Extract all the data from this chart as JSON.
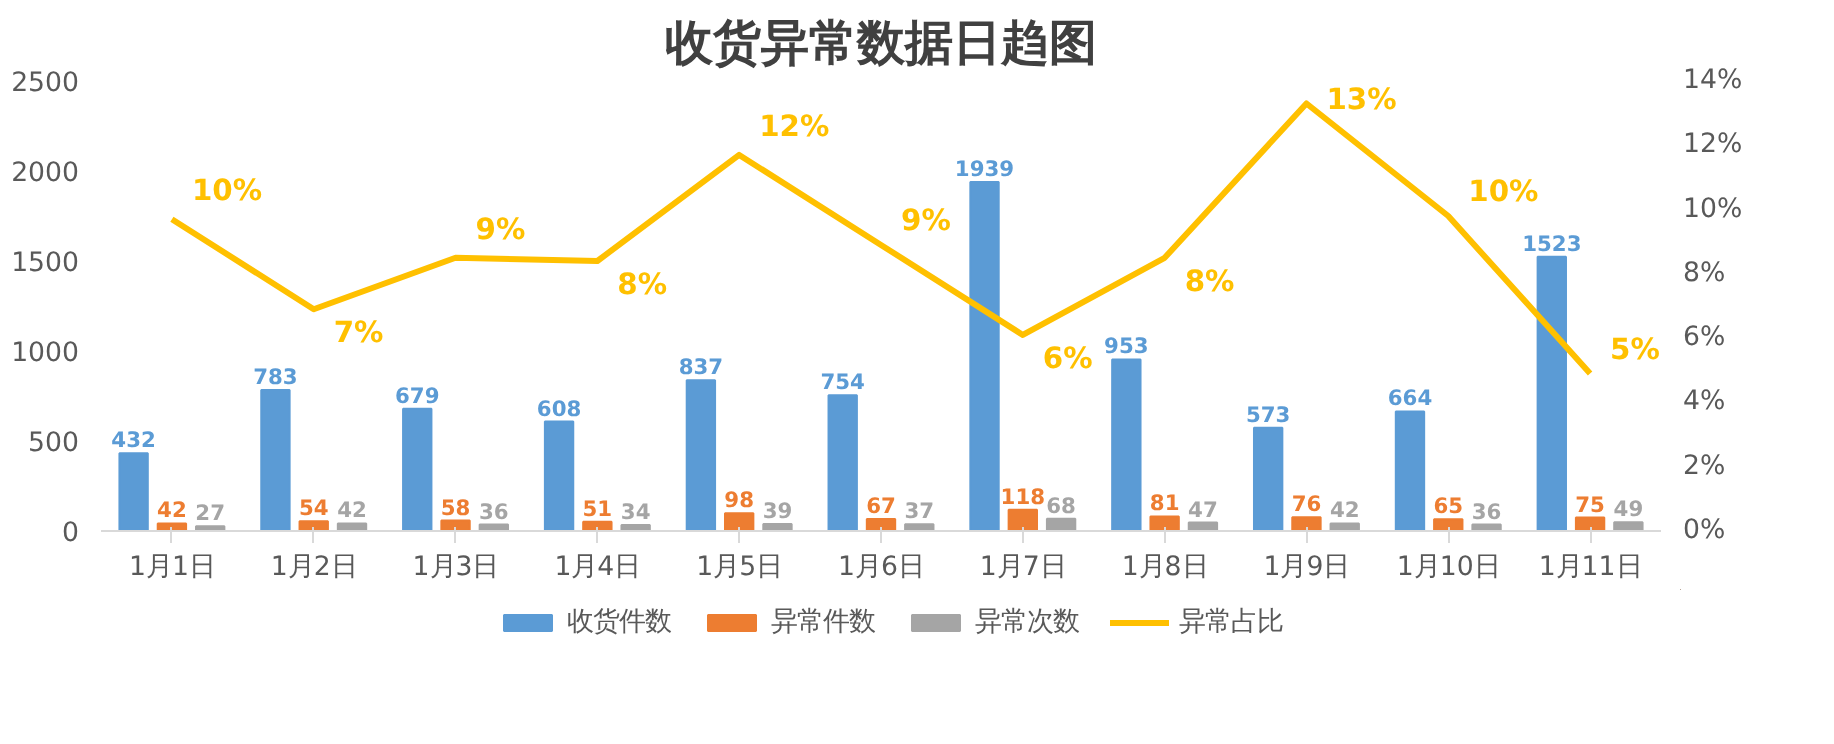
{
  "chart_data": {
    "type": "bar",
    "title": "收货异常数据日趋图",
    "categories": [
      "1月1日",
      "1月2日",
      "1月3日",
      "1月4日",
      "1月5日",
      "1月6日",
      "1月7日",
      "1月8日",
      "1月9日",
      "1月10日",
      "1月11日"
    ],
    "series": [
      {
        "name": "收货件数",
        "color": "#5b9bd5",
        "values": [
          432,
          783,
          679,
          608,
          837,
          754,
          1939,
          953,
          573,
          664,
          1523
        ],
        "value_labels": [
          "432",
          "783",
          "679",
          "608",
          "837",
          "754",
          "1939",
          "953",
          "573",
          "664",
          "1523"
        ]
      },
      {
        "name": "异常件数",
        "color": "#ed7d31",
        "values": [
          42,
          54,
          58,
          51,
          98,
          67,
          118,
          81,
          76,
          65,
          75
        ],
        "value_labels": [
          "42",
          "54",
          "58",
          "51",
          "98",
          "67",
          "118",
          "81",
          "76",
          "65",
          "75"
        ]
      },
      {
        "name": "异常次数",
        "color": "#a5a5a5",
        "values": [
          27,
          42,
          36,
          34,
          39,
          37,
          68,
          47,
          42,
          36,
          49
        ],
        "value_labels": [
          "27",
          "42",
          "36",
          "34",
          "39",
          "37",
          "68",
          "47",
          "42",
          "36",
          "49"
        ]
      },
      {
        "name": "异常占比",
        "color": "#ffc000",
        "type": "line",
        "axis": "y2",
        "values": [
          9.7,
          6.9,
          8.5,
          8.4,
          11.7,
          8.9,
          6.1,
          8.5,
          13.3,
          9.8,
          4.9
        ],
        "value_labels": [
          "10%",
          "7%",
          "9%",
          "8%",
          "12%",
          "9%",
          "6%",
          "8%",
          "13%",
          "10%",
          "5%"
        ]
      }
    ],
    "ylim": [
      0,
      2500
    ],
    "yticks": [
      0,
      500,
      1000,
      1500,
      2000,
      2500
    ],
    "y2lim": [
      0,
      14
    ],
    "y2ticks": [
      {
        "value": 0,
        "label": "0%"
      },
      {
        "value": 2,
        "label": "2%"
      },
      {
        "value": 4,
        "label": "4%"
      },
      {
        "value": 6,
        "label": "6%"
      },
      {
        "value": 8,
        "label": "8%"
      },
      {
        "value": 10,
        "label": "10%"
      },
      {
        "value": 12,
        "label": "12%"
      },
      {
        "value": 14,
        "label": "14%"
      }
    ],
    "grid": false,
    "legend": "bottom",
    "marker": "none",
    "line_style": "solid"
  }
}
